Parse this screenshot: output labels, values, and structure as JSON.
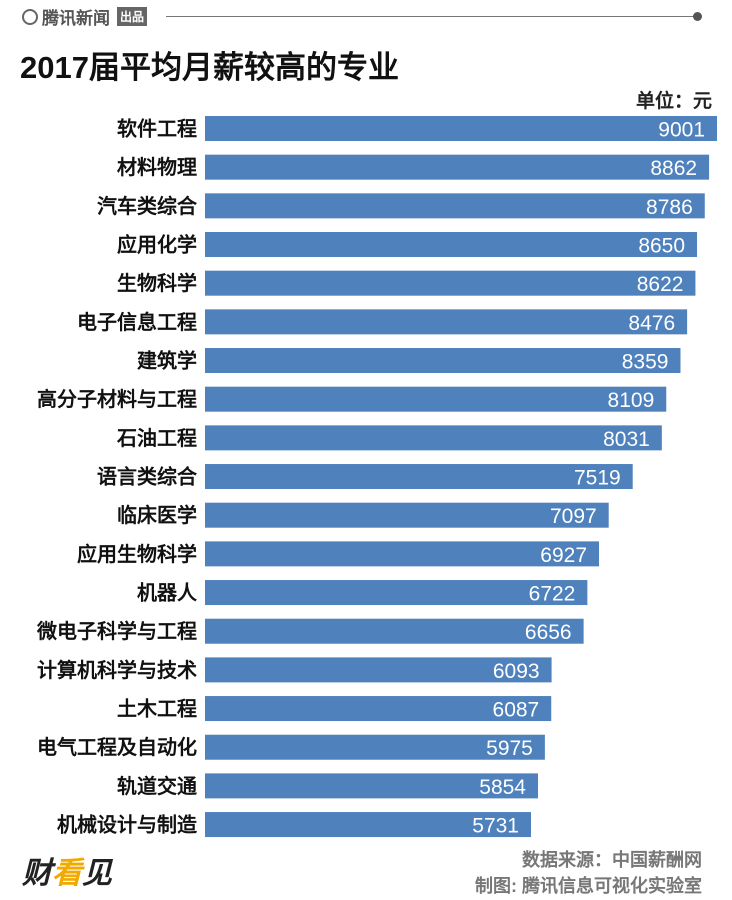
{
  "header": {
    "brand": "腾讯新闻",
    "brand_tag": "出品"
  },
  "chart_data": {
    "type": "bar",
    "orientation": "horizontal",
    "title": "2017届平均月薪较高的专业",
    "unit_label": "单位：元",
    "categories": [
      "软件工程",
      "材料物理",
      "汽车类综合",
      "应用化学",
      "生物科学",
      "电子信息工程",
      "建筑学",
      "高分子材料与工程",
      "石油工程",
      "语言类综合",
      "临床医学",
      "应用生物科学",
      "机器人",
      "微电子科学与工程",
      "计算机科学与技术",
      "土木工程",
      "电气工程及自动化",
      "轨道交通",
      "机械设计与制造"
    ],
    "values": [
      9001,
      8862,
      8786,
      8650,
      8622,
      8476,
      8359,
      8109,
      8031,
      7519,
      7097,
      6927,
      6722,
      6656,
      6093,
      6087,
      5975,
      5854,
      5731
    ],
    "xlim": [
      0,
      9001
    ],
    "grid": false,
    "bar_color": "#4f81bd",
    "label_color": "#ffffff"
  },
  "footer": {
    "source": "数据来源：中国薪酬网",
    "credit": "制图: 腾讯信息可视化实验室",
    "logo": "财看见"
  }
}
